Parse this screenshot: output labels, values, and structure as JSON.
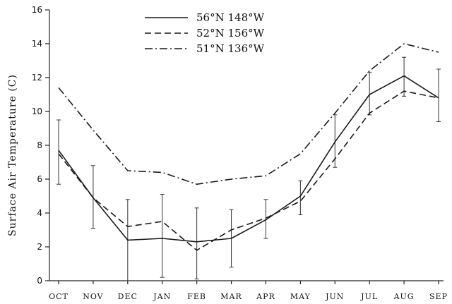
{
  "chart_data": {
    "type": "line",
    "title": "",
    "xlabel": "",
    "ylabel": "Surface Air Temperature (C)",
    "categories": [
      "Oct",
      "Nov",
      "Dec",
      "Jan",
      "Feb",
      "Mar",
      "Apr",
      "May",
      "Jun",
      "Jul",
      "Aug",
      "Sep"
    ],
    "category_labels": [
      "OCT",
      "NOV",
      "DEC",
      "JAN",
      "FEB",
      "MAR",
      "APR",
      "MAY",
      "JUN",
      "JUL",
      "AUG",
      "SEP"
    ],
    "ylim": [
      0,
      16
    ],
    "yticks": [
      0,
      2,
      4,
      6,
      8,
      10,
      12,
      14,
      16
    ],
    "ytick_labels": [
      "0",
      "2",
      "4",
      "6",
      "8",
      "10",
      "12",
      "14",
      "16"
    ],
    "grid": false,
    "legend_position": "top-center",
    "series": [
      {
        "name": "56°N 148°W",
        "style": "solid",
        "values": [
          7.7,
          4.9,
          2.4,
          2.5,
          2.3,
          2.5,
          3.6,
          5.0,
          8.2,
          11.0,
          12.1,
          10.8
        ],
        "error_low": [
          5.7,
          3.1,
          0.0,
          0.2,
          0.1,
          0.8,
          2.5,
          3.9,
          6.7,
          9.8,
          10.9,
          9.4
        ],
        "error_high": [
          9.5,
          6.8,
          4.8,
          5.1,
          4.3,
          4.2,
          4.8,
          5.9,
          9.8,
          12.3,
          13.2,
          12.5
        ]
      },
      {
        "name": "52°N 156°W",
        "style": "dashed",
        "values": [
          7.5,
          4.9,
          3.2,
          3.5,
          1.8,
          3.0,
          3.7,
          4.7,
          7.2,
          9.9,
          11.2,
          10.8
        ]
      },
      {
        "name": "51°N 136°W",
        "style": "dashdot",
        "values": [
          11.4,
          8.9,
          6.5,
          6.4,
          5.7,
          6.0,
          6.2,
          7.5,
          9.9,
          12.4,
          14.0,
          13.5
        ]
      }
    ]
  }
}
